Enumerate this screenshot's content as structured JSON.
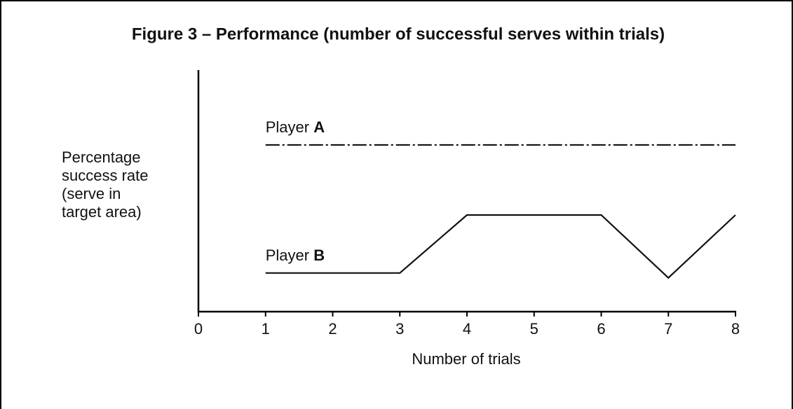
{
  "chart_data": {
    "type": "line",
    "title": "Figure 3 – Performance (number of successful serves within trials)",
    "x_label": "Number of trials",
    "y_label": "Percentage success rate (serve in target area)",
    "xlim": [
      0,
      8
    ],
    "xticks": [
      0,
      1,
      2,
      3,
      4,
      5,
      6,
      7,
      8
    ],
    "ylim": [
      0,
      100
    ],
    "series": [
      {
        "name": "Player A",
        "color": "#111111",
        "dash": "dashdot",
        "x": [
          1,
          8
        ],
        "values": [
          69,
          69
        ]
      },
      {
        "name": "Player B",
        "color": "#111111",
        "dash": "solid",
        "x": [
          1,
          3,
          4,
          6,
          7,
          8
        ],
        "values": [
          16,
          16,
          40,
          40,
          14,
          40
        ]
      }
    ]
  }
}
